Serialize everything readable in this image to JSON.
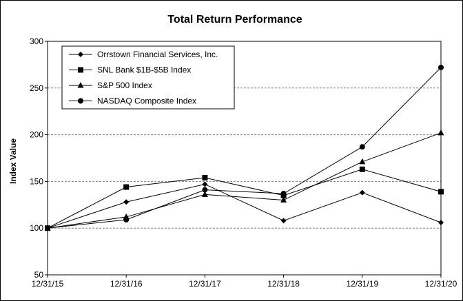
{
  "chart_data": {
    "type": "line",
    "title": "Total Return Performance",
    "xlabel": "",
    "ylabel": "Index Value",
    "categories": [
      "12/31/15",
      "12/31/16",
      "12/31/17",
      "12/31/18",
      "12/31/19",
      "12/31/20"
    ],
    "ylim": [
      50,
      300
    ],
    "yticks": [
      50,
      100,
      150,
      200,
      250,
      300
    ],
    "grid": "horizontal dashed",
    "legend_position": "top-left",
    "series": [
      {
        "name": "Orrstown Financial Services, Inc.",
        "marker": "diamond",
        "values": [
          100,
          128,
          147,
          108,
          138,
          106
        ]
      },
      {
        "name": "SNL Bank $1B-$5B Index",
        "marker": "square",
        "values": [
          100,
          144,
          154,
          135,
          163,
          139
        ]
      },
      {
        "name": "S&P 500 Index",
        "marker": "triangle",
        "values": [
          100,
          112,
          136,
          130,
          171,
          202
        ]
      },
      {
        "name": "NASDAQ Composite Index",
        "marker": "circle",
        "values": [
          100,
          109,
          141,
          137,
          187,
          272
        ]
      }
    ],
    "colors": {
      "line": "#000000",
      "grid": "#808080",
      "background": "#ffffff"
    }
  }
}
